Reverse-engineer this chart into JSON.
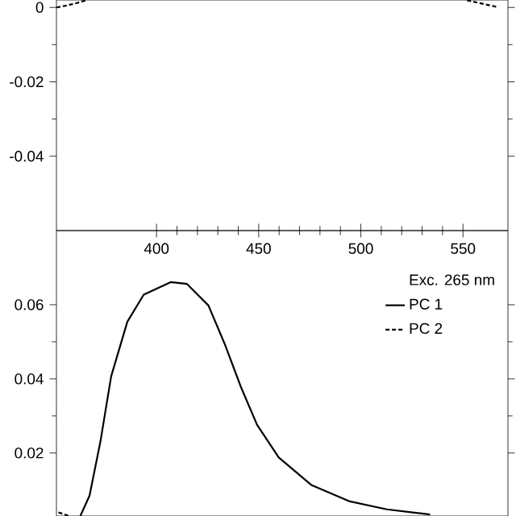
{
  "chart_data": [
    {
      "type": "line",
      "xlim": [
        351,
        572
      ],
      "ylim": [
        -0.06,
        0.002
      ],
      "xticks": [
        400,
        450,
        500,
        550
      ],
      "yticks": [
        -0.04,
        -0.02,
        0
      ],
      "grid": false,
      "legend": false,
      "series": [
        {
          "color": "#000000",
          "line_style": "dashed",
          "x": [
            351,
            356,
            361,
            366
          ],
          "values": [
            0,
            0.0005,
            0.0012,
            0.002
          ]
        },
        {
          "color": "#000000",
          "line_style": "dashed",
          "x": [
            552,
            557,
            562,
            567
          ],
          "values": [
            0.0019,
            0.0013,
            0.0007,
            0.0001
          ]
        }
      ]
    },
    {
      "type": "line",
      "xlim": [
        351,
        572
      ],
      "ylim": [
        0.003,
        0.08
      ],
      "xticks": [
        400,
        450,
        500,
        550
      ],
      "yticks": [
        0.02,
        0.04,
        0.06
      ],
      "tick_labels": "y",
      "grid": false,
      "legend": "top right",
      "legend_title": "Exc. 265 nm",
      "series": [
        {
          "name": "PC 1",
          "color": "#000000",
          "line_style": "solid",
          "x": [
            362.7,
            367.2,
            372.5,
            377.8,
            385.7,
            393.7,
            406.9,
            414.9,
            425.4,
            433.3,
            441.3,
            449.2,
            459.8,
            475.7,
            494.2,
            512.7,
            533.9
          ],
          "values": [
            0.003,
            0.0085,
            0.023,
            0.0407,
            0.0554,
            0.0627,
            0.0661,
            0.0656,
            0.0598,
            0.0495,
            0.0378,
            0.0276,
            0.0188,
            0.0114,
            0.007,
            0.0048,
            0.0034
          ]
        },
        {
          "name": "PC 2",
          "color": "#000000",
          "line_style": "dashed",
          "x": [
            352,
            357
          ],
          "values": [
            0.004,
            0.003
          ]
        }
      ]
    }
  ]
}
